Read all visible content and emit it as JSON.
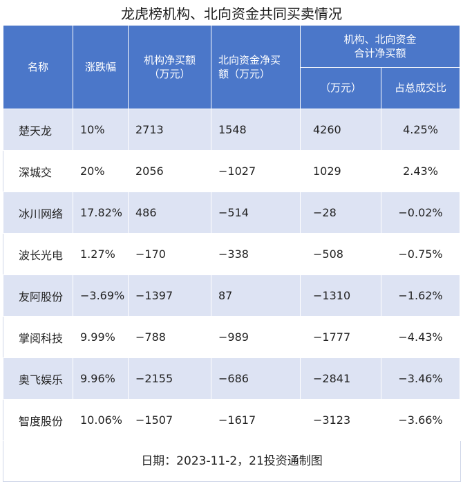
{
  "title": "龙虎榜机构、北向资金共同买卖情况",
  "headers": {
    "name": "名称",
    "change": "涨跌幅",
    "inst_line1": "机构净买额",
    "inst_line2": "（万元）",
    "north_line1": "北向资金净买",
    "north_line2": "额（万元）",
    "combined_line1": "机构、北向资金",
    "combined_line2": "合计净买额",
    "combined_sub1": "（万元）",
    "combined_sub2": "占总成交比"
  },
  "rows": [
    {
      "name": "楚天龙",
      "change": "10%",
      "inst": "2713",
      "north": "1548",
      "total": "4260",
      "ratio": "4.25%"
    },
    {
      "name": "深城交",
      "change": "20%",
      "inst": "2056",
      "north": "−1027",
      "total": "1029",
      "ratio": "2.43%"
    },
    {
      "name": "冰川网络",
      "change": "17.82%",
      "inst": "486",
      "north": "−514",
      "total": "−28",
      "ratio": "−0.02%"
    },
    {
      "name": "波长光电",
      "change": "1.27%",
      "inst": "−170",
      "north": "−338",
      "total": "−508",
      "ratio": "−0.75%"
    },
    {
      "name": "友阿股份",
      "change": "−3.69%",
      "inst": "−1397",
      "north": "87",
      "total": "−1310",
      "ratio": "−1.62%"
    },
    {
      "name": "掌阅科技",
      "change": "9.99%",
      "inst": "−788",
      "north": "−989",
      "total": "−1777",
      "ratio": "−4.43%"
    },
    {
      "name": "奥飞娱乐",
      "change": "9.96%",
      "inst": "−2155",
      "north": "−686",
      "total": "−2841",
      "ratio": "−3.46%"
    },
    {
      "name": "智度股份",
      "change": "10.06%",
      "inst": "−1507",
      "north": "−1617",
      "total": "−3123",
      "ratio": "−3.66%"
    }
  ],
  "footer": "日期：2023-11-2，21投资通制图",
  "colors": {
    "header_bg": "#4b77c9",
    "stripe": "#dde3f3"
  }
}
